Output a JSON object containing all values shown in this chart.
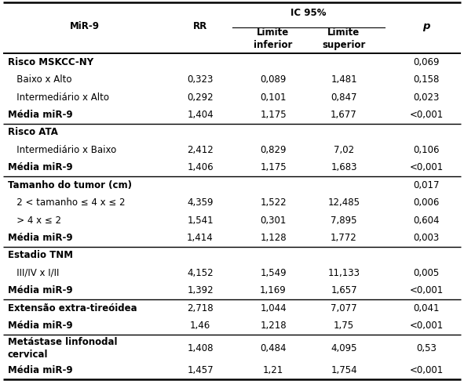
{
  "col_headers": [
    "MiR-9",
    "RR",
    "Limite\ninferior",
    "Limite\nsuperior",
    "p"
  ],
  "ic_header": "IC 95%",
  "rows": [
    {
      "label": "Risco MSKCC-NY",
      "rr": "",
      "lim_inf": "",
      "lim_sup": "",
      "p": "0,069",
      "label_bold": true,
      "data_bold": false,
      "indent": false,
      "section_start": true
    },
    {
      "label": "   Baixo x Alto",
      "rr": "0,323",
      "lim_inf": "0,089",
      "lim_sup": "1,481",
      "p": "0,158",
      "label_bold": false,
      "data_bold": false,
      "indent": false,
      "section_start": false
    },
    {
      "label": "   Intermediário x Alto",
      "rr": "0,292",
      "lim_inf": "0,101",
      "lim_sup": "0,847",
      "p": "0,023",
      "label_bold": false,
      "data_bold": false,
      "indent": false,
      "section_start": false
    },
    {
      "label": "Média miR-9",
      "rr": "1,404",
      "lim_inf": "1,175",
      "lim_sup": "1,677",
      "p": "<0,001",
      "label_bold": true,
      "data_bold": false,
      "indent": false,
      "section_start": false
    },
    {
      "label": "Risco ATA",
      "rr": "",
      "lim_inf": "",
      "lim_sup": "",
      "p": "",
      "label_bold": true,
      "data_bold": false,
      "indent": false,
      "section_start": true
    },
    {
      "label": "   Intermediário x Baixo",
      "rr": "2,412",
      "lim_inf": "0,829",
      "lim_sup": "7,02",
      "p": "0,106",
      "label_bold": false,
      "data_bold": false,
      "indent": false,
      "section_start": false
    },
    {
      "label": "Média miR-9",
      "rr": "1,406",
      "lim_inf": "1,175",
      "lim_sup": "1,683",
      "p": "<0,001",
      "label_bold": true,
      "data_bold": false,
      "indent": false,
      "section_start": false
    },
    {
      "label": "Tamanho do tumor (cm)",
      "rr": "",
      "lim_inf": "",
      "lim_sup": "",
      "p": "0,017",
      "label_bold": true,
      "data_bold": false,
      "indent": false,
      "section_start": true
    },
    {
      "label": "   2 < tamanho ≤ 4 x ≤ 2",
      "rr": "4,359",
      "lim_inf": "1,522",
      "lim_sup": "12,485",
      "p": "0,006",
      "label_bold": false,
      "data_bold": false,
      "indent": false,
      "section_start": false
    },
    {
      "label": "   > 4 x ≤ 2",
      "rr": "1,541",
      "lim_inf": "0,301",
      "lim_sup": "7,895",
      "p": "0,604",
      "label_bold": false,
      "data_bold": false,
      "indent": false,
      "section_start": false
    },
    {
      "label": "Média miR-9",
      "rr": "1,414",
      "lim_inf": "1,128",
      "lim_sup": "1,772",
      "p": "0,003",
      "label_bold": true,
      "data_bold": false,
      "indent": false,
      "section_start": false
    },
    {
      "label": "Estadio TNM",
      "rr": "",
      "lim_inf": "",
      "lim_sup": "",
      "p": "",
      "label_bold": true,
      "data_bold": false,
      "indent": false,
      "section_start": true
    },
    {
      "label": "   III/IV x I/II",
      "rr": "4,152",
      "lim_inf": "1,549",
      "lim_sup": "11,133",
      "p": "0,005",
      "label_bold": false,
      "data_bold": false,
      "indent": false,
      "section_start": false
    },
    {
      "label": "Média miR-9",
      "rr": "1,392",
      "lim_inf": "1,169",
      "lim_sup": "1,657",
      "p": "<0,001",
      "label_bold": true,
      "data_bold": false,
      "indent": false,
      "section_start": false
    },
    {
      "label": "Extensão extra-tireóidea",
      "rr": "2,718",
      "lim_inf": "1,044",
      "lim_sup": "7,077",
      "p": "0,041",
      "label_bold": true,
      "data_bold": false,
      "indent": false,
      "section_start": true
    },
    {
      "label": "Média miR-9",
      "rr": "1,46",
      "lim_inf": "1,218",
      "lim_sup": "1,75",
      "p": "<0,001",
      "label_bold": true,
      "data_bold": false,
      "indent": false,
      "section_start": false
    },
    {
      "label": "Metástase linfonodal\ncervical",
      "rr": "1,408",
      "lim_inf": "0,484",
      "lim_sup": "4,095",
      "p": "0,53",
      "label_bold": true,
      "data_bold": false,
      "indent": false,
      "section_start": true
    },
    {
      "label": "Média miR-9",
      "rr": "1,457",
      "lim_inf": "1,21",
      "lim_sup": "1,754",
      "p": "<0,001",
      "label_bold": true,
      "data_bold": false,
      "indent": false,
      "section_start": false
    }
  ],
  "section_dividers_before": [
    4,
    7,
    11,
    14,
    16
  ],
  "bg_color": "#ffffff",
  "text_color": "#000000",
  "font_size": 8.5
}
